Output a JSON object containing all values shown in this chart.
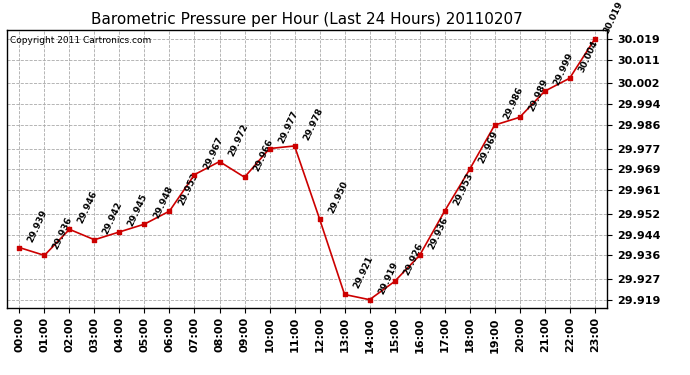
{
  "title": "Barometric Pressure per Hour (Last 24 Hours) 20110207",
  "copyright": "Copyright 2011 Cartronics.com",
  "hours": [
    "00:00",
    "01:00",
    "02:00",
    "03:00",
    "04:00",
    "05:00",
    "06:00",
    "07:00",
    "08:00",
    "09:00",
    "10:00",
    "11:00",
    "12:00",
    "13:00",
    "14:00",
    "15:00",
    "16:00",
    "17:00",
    "18:00",
    "19:00",
    "20:00",
    "21:00",
    "22:00",
    "23:00"
  ],
  "values": [
    29.939,
    29.936,
    29.946,
    29.942,
    29.945,
    29.948,
    29.953,
    29.967,
    29.972,
    29.966,
    29.977,
    29.978,
    29.95,
    29.921,
    29.919,
    29.926,
    29.936,
    29.953,
    29.969,
    29.986,
    29.989,
    29.999,
    30.004,
    30.019
  ],
  "labels": [
    "29.939",
    "29.936",
    "29.946",
    "29.942",
    "29.945",
    "29.948",
    "29.953",
    "29.967",
    "29.972",
    "29.966",
    "29.977",
    "29.978",
    "29.950",
    "29.921",
    "29.919",
    "29.926",
    "29.936",
    "29.953",
    "29.969",
    "29.986",
    "29.989",
    "29.999",
    "30.004",
    "30.019"
  ],
  "ylim_min": 29.916,
  "ylim_max": 30.0225,
  "yticks": [
    29.919,
    29.927,
    29.936,
    29.944,
    29.952,
    29.961,
    29.969,
    29.977,
    29.986,
    29.994,
    30.002,
    30.011,
    30.019
  ],
  "line_color": "#cc0000",
  "marker_color": "#cc0000",
  "bg_color": "#ffffff",
  "grid_color": "#aaaaaa",
  "title_fontsize": 11,
  "label_fontsize": 6.5,
  "tick_fontsize": 8,
  "copyright_fontsize": 6.5
}
